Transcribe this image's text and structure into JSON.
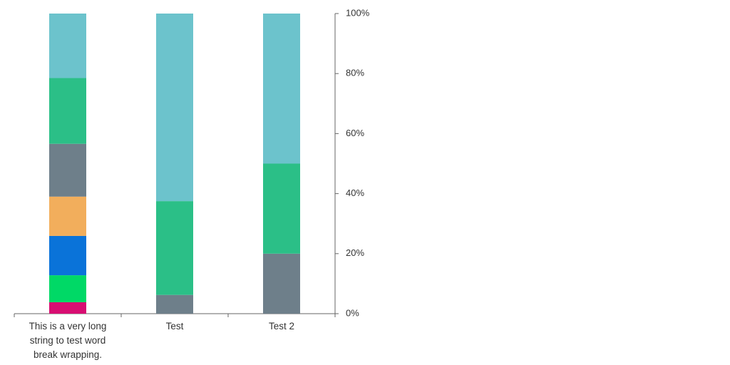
{
  "chart_data": {
    "type": "stacked_bar",
    "categories": [
      "This is a very long string to test word break wrapping.",
      "Test",
      "Test 2"
    ],
    "series": [
      {
        "color": "#d80e72",
        "values": [
          3.8,
          null,
          null
        ]
      },
      {
        "color": "#00d966",
        "values": [
          9,
          null,
          null
        ]
      },
      {
        "color": "#0a73d9",
        "values": [
          13.1,
          null,
          null
        ]
      },
      {
        "color": "#f2ae5c",
        "values": [
          13.1,
          null,
          null
        ]
      },
      {
        "color": "#6e7f8a",
        "values": [
          17.6,
          6.25,
          20
        ]
      },
      {
        "color": "#2bbf87",
        "values": [
          21.9,
          31.25,
          30
        ]
      },
      {
        "color": "#6cc3cc",
        "values": [
          21.5,
          62.5,
          50
        ]
      }
    ],
    "ylim": [
      0,
      100
    ],
    "yticks": [
      {
        "value": 0,
        "label": "0%"
      },
      {
        "value": 20,
        "label": "20%"
      },
      {
        "value": 40,
        "label": "40%"
      },
      {
        "value": 60,
        "label": "60%"
      },
      {
        "value": 80,
        "label": "80%"
      },
      {
        "value": 100,
        "label": "100%"
      }
    ]
  }
}
